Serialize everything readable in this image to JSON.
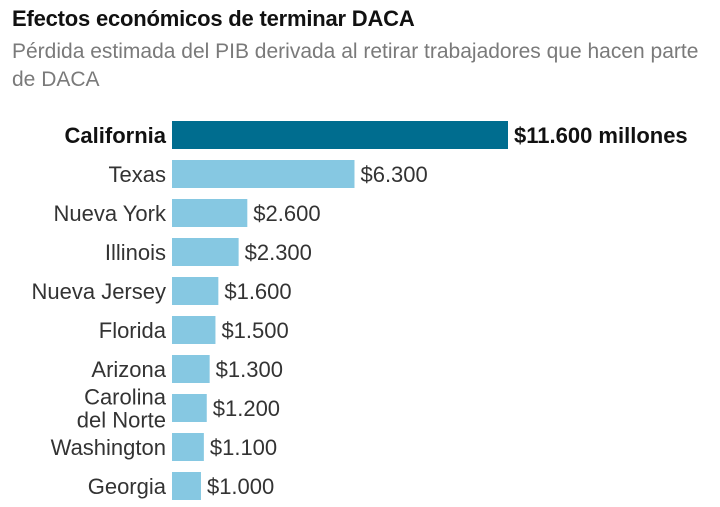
{
  "header": {
    "title": "Efectos económicos de terminar DACA",
    "subtitle": "Pérdida estimada del PIB derivada al retirar trabajadores que hacen parte de DACA"
  },
  "colors": {
    "highlight_bar": "#006d8f",
    "bar": "#86c8e2"
  },
  "chart_data": {
    "type": "bar",
    "orientation": "horizontal",
    "title": "Efectos económicos de terminar DACA",
    "subtitle": "Pérdida estimada del PIB derivada al retirar trabajadores que hacen parte de DACA",
    "categories": [
      [
        "California"
      ],
      [
        "Texas"
      ],
      [
        "Nueva York"
      ],
      [
        "Illinois"
      ],
      [
        "Nueva Jersey"
      ],
      [
        "Florida"
      ],
      [
        "Arizona"
      ],
      [
        "Carolina",
        "del Norte"
      ],
      [
        "Washington"
      ],
      [
        "Georgia"
      ]
    ],
    "values": [
      11600,
      6300,
      2600,
      2300,
      1600,
      1500,
      1300,
      1200,
      1100,
      1000
    ],
    "value_labels": [
      "$11.600 millones",
      "$6.300",
      "$2.600",
      "$2.300",
      "$1.600",
      "$1.500",
      "$1.300",
      "$1.200",
      "$1.100",
      "$1.000"
    ],
    "highlight_index": 0,
    "xlim": [
      0,
      11600
    ],
    "grid": false,
    "legend": "none"
  }
}
